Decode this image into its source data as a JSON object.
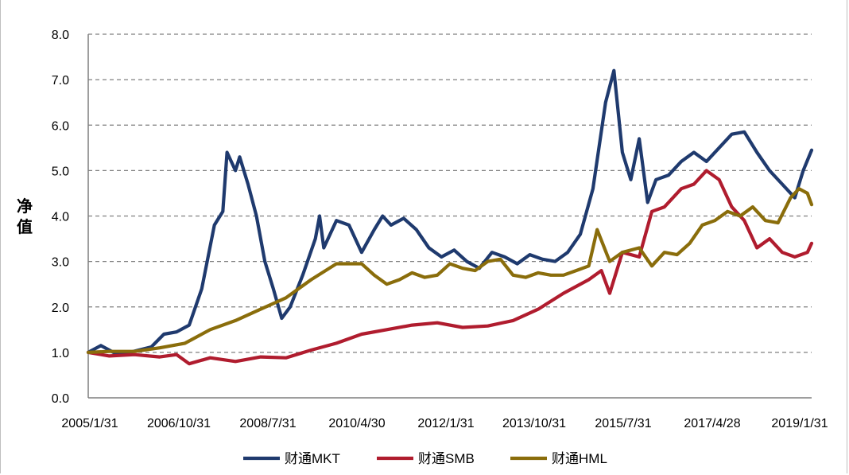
{
  "chart_data": {
    "type": "line",
    "title": "",
    "xlabel": "",
    "ylabel": "净值",
    "ylim": [
      0,
      8
    ],
    "yticks": [
      "0.0",
      "1.0",
      "2.0",
      "3.0",
      "4.0",
      "5.0",
      "6.0",
      "7.0",
      "8.0"
    ],
    "xticks": [
      "2005/1/31",
      "2006/10/31",
      "2008/7/31",
      "2010/4/30",
      "2012/1/31",
      "2013/10/31",
      "2015/7/31",
      "2017/4/28",
      "2019/1/31"
    ],
    "grid": true,
    "legend": "bottom",
    "series": [
      {
        "name": "财通MKT",
        "color": "#1f3a6e",
        "points": [
          [
            "2005-01",
            1.0
          ],
          [
            "2005-04",
            1.15
          ],
          [
            "2005-07",
            1.0
          ],
          [
            "2005-10",
            0.98
          ],
          [
            "2006-01",
            1.05
          ],
          [
            "2006-04",
            1.12
          ],
          [
            "2006-07",
            1.4
          ],
          [
            "2006-10",
            1.45
          ],
          [
            "2007-01",
            1.6
          ],
          [
            "2007-04",
            2.4
          ],
          [
            "2007-07",
            3.8
          ],
          [
            "2007-09",
            4.1
          ],
          [
            "2007-10",
            5.4
          ],
          [
            "2007-12",
            5.0
          ],
          [
            "2008-01",
            5.3
          ],
          [
            "2008-03",
            4.7
          ],
          [
            "2008-05",
            4.0
          ],
          [
            "2008-07",
            3.0
          ],
          [
            "2008-09",
            2.4
          ],
          [
            "2008-11",
            1.75
          ],
          [
            "2009-01",
            2.0
          ],
          [
            "2009-04",
            2.7
          ],
          [
            "2009-07",
            3.5
          ],
          [
            "2009-08",
            4.0
          ],
          [
            "2009-09",
            3.3
          ],
          [
            "2009-12",
            3.9
          ],
          [
            "2010-03",
            3.8
          ],
          [
            "2010-06",
            3.2
          ],
          [
            "2010-09",
            3.7
          ],
          [
            "2010-11",
            4.0
          ],
          [
            "2011-01",
            3.8
          ],
          [
            "2011-04",
            3.95
          ],
          [
            "2011-07",
            3.7
          ],
          [
            "2011-10",
            3.3
          ],
          [
            "2012-01",
            3.1
          ],
          [
            "2012-04",
            3.25
          ],
          [
            "2012-07",
            3.0
          ],
          [
            "2012-10",
            2.85
          ],
          [
            "2013-01",
            3.2
          ],
          [
            "2013-04",
            3.1
          ],
          [
            "2013-07",
            2.95
          ],
          [
            "2013-10",
            3.15
          ],
          [
            "2014-01",
            3.05
          ],
          [
            "2014-04",
            3.0
          ],
          [
            "2014-07",
            3.2
          ],
          [
            "2014-10",
            3.6
          ],
          [
            "2015-01",
            4.6
          ],
          [
            "2015-04",
            6.5
          ],
          [
            "2015-06",
            7.2
          ],
          [
            "2015-08",
            5.4
          ],
          [
            "2015-10",
            4.8
          ],
          [
            "2015-12",
            5.7
          ],
          [
            "2016-02",
            4.3
          ],
          [
            "2016-04",
            4.8
          ],
          [
            "2016-07",
            4.9
          ],
          [
            "2016-10",
            5.2
          ],
          [
            "2017-01",
            5.4
          ],
          [
            "2017-04",
            5.2
          ],
          [
            "2017-07",
            5.5
          ],
          [
            "2017-10",
            5.8
          ],
          [
            "2018-01",
            5.85
          ],
          [
            "2018-04",
            5.4
          ],
          [
            "2018-07",
            5.0
          ],
          [
            "2018-10",
            4.7
          ],
          [
            "2019-01",
            4.4
          ],
          [
            "2019-03",
            5.0
          ],
          [
            "2019-05",
            5.45
          ]
        ]
      },
      {
        "name": "财通SMB",
        "color": "#b01c2e",
        "points": [
          [
            "2005-01",
            1.0
          ],
          [
            "2005-06",
            0.92
          ],
          [
            "2005-12",
            0.95
          ],
          [
            "2006-06",
            0.9
          ],
          [
            "2006-10",
            0.95
          ],
          [
            "2007-01",
            0.75
          ],
          [
            "2007-06",
            0.88
          ],
          [
            "2007-12",
            0.8
          ],
          [
            "2008-06",
            0.9
          ],
          [
            "2008-12",
            0.88
          ],
          [
            "2009-06",
            1.05
          ],
          [
            "2009-12",
            1.2
          ],
          [
            "2010-06",
            1.4
          ],
          [
            "2010-12",
            1.5
          ],
          [
            "2011-06",
            1.6
          ],
          [
            "2011-12",
            1.65
          ],
          [
            "2012-06",
            1.55
          ],
          [
            "2012-12",
            1.58
          ],
          [
            "2013-06",
            1.7
          ],
          [
            "2013-12",
            1.95
          ],
          [
            "2014-06",
            2.3
          ],
          [
            "2014-12",
            2.6
          ],
          [
            "2015-03",
            2.8
          ],
          [
            "2015-05",
            2.3
          ],
          [
            "2015-08",
            3.2
          ],
          [
            "2015-12",
            3.1
          ],
          [
            "2016-03",
            4.1
          ],
          [
            "2016-06",
            4.2
          ],
          [
            "2016-10",
            4.6
          ],
          [
            "2017-01",
            4.7
          ],
          [
            "2017-04",
            5.0
          ],
          [
            "2017-07",
            4.8
          ],
          [
            "2017-10",
            4.2
          ],
          [
            "2018-01",
            3.9
          ],
          [
            "2018-04",
            3.3
          ],
          [
            "2018-07",
            3.5
          ],
          [
            "2018-10",
            3.2
          ],
          [
            "2019-01",
            3.1
          ],
          [
            "2019-04",
            3.2
          ],
          [
            "2019-05",
            3.4
          ]
        ]
      },
      {
        "name": "财通HML",
        "color": "#8a6d0b",
        "points": [
          [
            "2005-01",
            1.0
          ],
          [
            "2005-06",
            1.02
          ],
          [
            "2005-12",
            1.02
          ],
          [
            "2006-06",
            1.1
          ],
          [
            "2006-12",
            1.2
          ],
          [
            "2007-06",
            1.5
          ],
          [
            "2007-12",
            1.7
          ],
          [
            "2008-06",
            1.95
          ],
          [
            "2008-12",
            2.2
          ],
          [
            "2009-06",
            2.6
          ],
          [
            "2009-12",
            2.95
          ],
          [
            "2010-06",
            2.95
          ],
          [
            "2010-09",
            2.7
          ],
          [
            "2010-12",
            2.5
          ],
          [
            "2011-03",
            2.6
          ],
          [
            "2011-06",
            2.75
          ],
          [
            "2011-09",
            2.65
          ],
          [
            "2011-12",
            2.7
          ],
          [
            "2012-03",
            2.95
          ],
          [
            "2012-06",
            2.85
          ],
          [
            "2012-09",
            2.8
          ],
          [
            "2012-12",
            3.0
          ],
          [
            "2013-03",
            3.05
          ],
          [
            "2013-06",
            2.7
          ],
          [
            "2013-09",
            2.65
          ],
          [
            "2013-12",
            2.75
          ],
          [
            "2014-03",
            2.7
          ],
          [
            "2014-06",
            2.7
          ],
          [
            "2014-09",
            2.8
          ],
          [
            "2014-12",
            2.9
          ],
          [
            "2015-02",
            3.7
          ],
          [
            "2015-05",
            3.0
          ],
          [
            "2015-08",
            3.2
          ],
          [
            "2015-12",
            3.3
          ],
          [
            "2016-03",
            2.9
          ],
          [
            "2016-06",
            3.2
          ],
          [
            "2016-09",
            3.15
          ],
          [
            "2016-12",
            3.4
          ],
          [
            "2017-03",
            3.8
          ],
          [
            "2017-06",
            3.9
          ],
          [
            "2017-09",
            4.1
          ],
          [
            "2017-12",
            4.0
          ],
          [
            "2018-03",
            4.2
          ],
          [
            "2018-06",
            3.9
          ],
          [
            "2018-09",
            3.85
          ],
          [
            "2018-12",
            4.4
          ],
          [
            "2019-02",
            4.6
          ],
          [
            "2019-04",
            4.5
          ],
          [
            "2019-05",
            4.25
          ]
        ]
      }
    ]
  }
}
